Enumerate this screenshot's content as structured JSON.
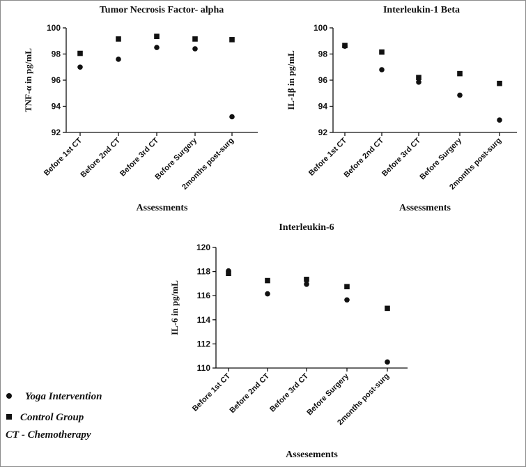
{
  "chart_data": [
    {
      "type": "scatter",
      "title": "Tumor Necrosis Factor- alpha",
      "ylabel": "TNF-α in pg/mL",
      "xlabel": "Assessments",
      "ylim": [
        92,
        100
      ],
      "yticks": [
        92,
        94,
        96,
        98,
        100
      ],
      "categories": [
        "Before 1st CT",
        "Before 2nd CT",
        "Before 3rd CT",
        "Before Surgery",
        "2months post-surg"
      ],
      "series": [
        {
          "name": "Yoga Intervention",
          "marker": "circle",
          "values": [
            97.0,
            97.6,
            98.5,
            98.4,
            93.2
          ]
        },
        {
          "name": "Control Group",
          "marker": "square",
          "values": [
            98.05,
            99.15,
            99.35,
            99.15,
            99.1
          ]
        }
      ]
    },
    {
      "type": "scatter",
      "title": "Interleukin-1 Beta",
      "ylabel": "IL-1β in pg/mL",
      "xlabel": "Assessments",
      "ylim": [
        92,
        100
      ],
      "yticks": [
        92,
        94,
        96,
        98,
        100
      ],
      "categories": [
        "Before 1st CT",
        "Before 2nd CT",
        "Before 3rd CT",
        "Before Surgery",
        "2months post-surg"
      ],
      "series": [
        {
          "name": "Yoga Intervention",
          "marker": "circle",
          "values": [
            98.6,
            96.8,
            95.85,
            94.85,
            92.95
          ]
        },
        {
          "name": "Control Group",
          "marker": "square",
          "values": [
            98.65,
            98.15,
            96.2,
            96.5,
            95.75
          ]
        }
      ]
    },
    {
      "type": "scatter",
      "title": "Interleukin-6",
      "ylabel": "IL-6 in pg/mL",
      "xlabel": "Assesements",
      "ylim": [
        110,
        120
      ],
      "yticks": [
        110,
        112,
        114,
        116,
        118,
        120
      ],
      "categories": [
        "Before 1st CT",
        "Before 2nd CT",
        "Before 3rd CT",
        "Before Surgery",
        "2months post-surg"
      ],
      "series": [
        {
          "name": "Yoga Intervention",
          "marker": "circle",
          "values": [
            118.05,
            116.15,
            116.95,
            115.65,
            110.5
          ]
        },
        {
          "name": "Control Group",
          "marker": "square",
          "values": [
            117.85,
            117.25,
            117.35,
            116.75,
            114.95
          ]
        }
      ]
    }
  ],
  "legend": {
    "items": [
      {
        "marker": "circle",
        "label": "Yoga Intervention"
      },
      {
        "marker": "square",
        "label": "Control Group"
      }
    ],
    "note": "CT - Chemotherapy"
  }
}
